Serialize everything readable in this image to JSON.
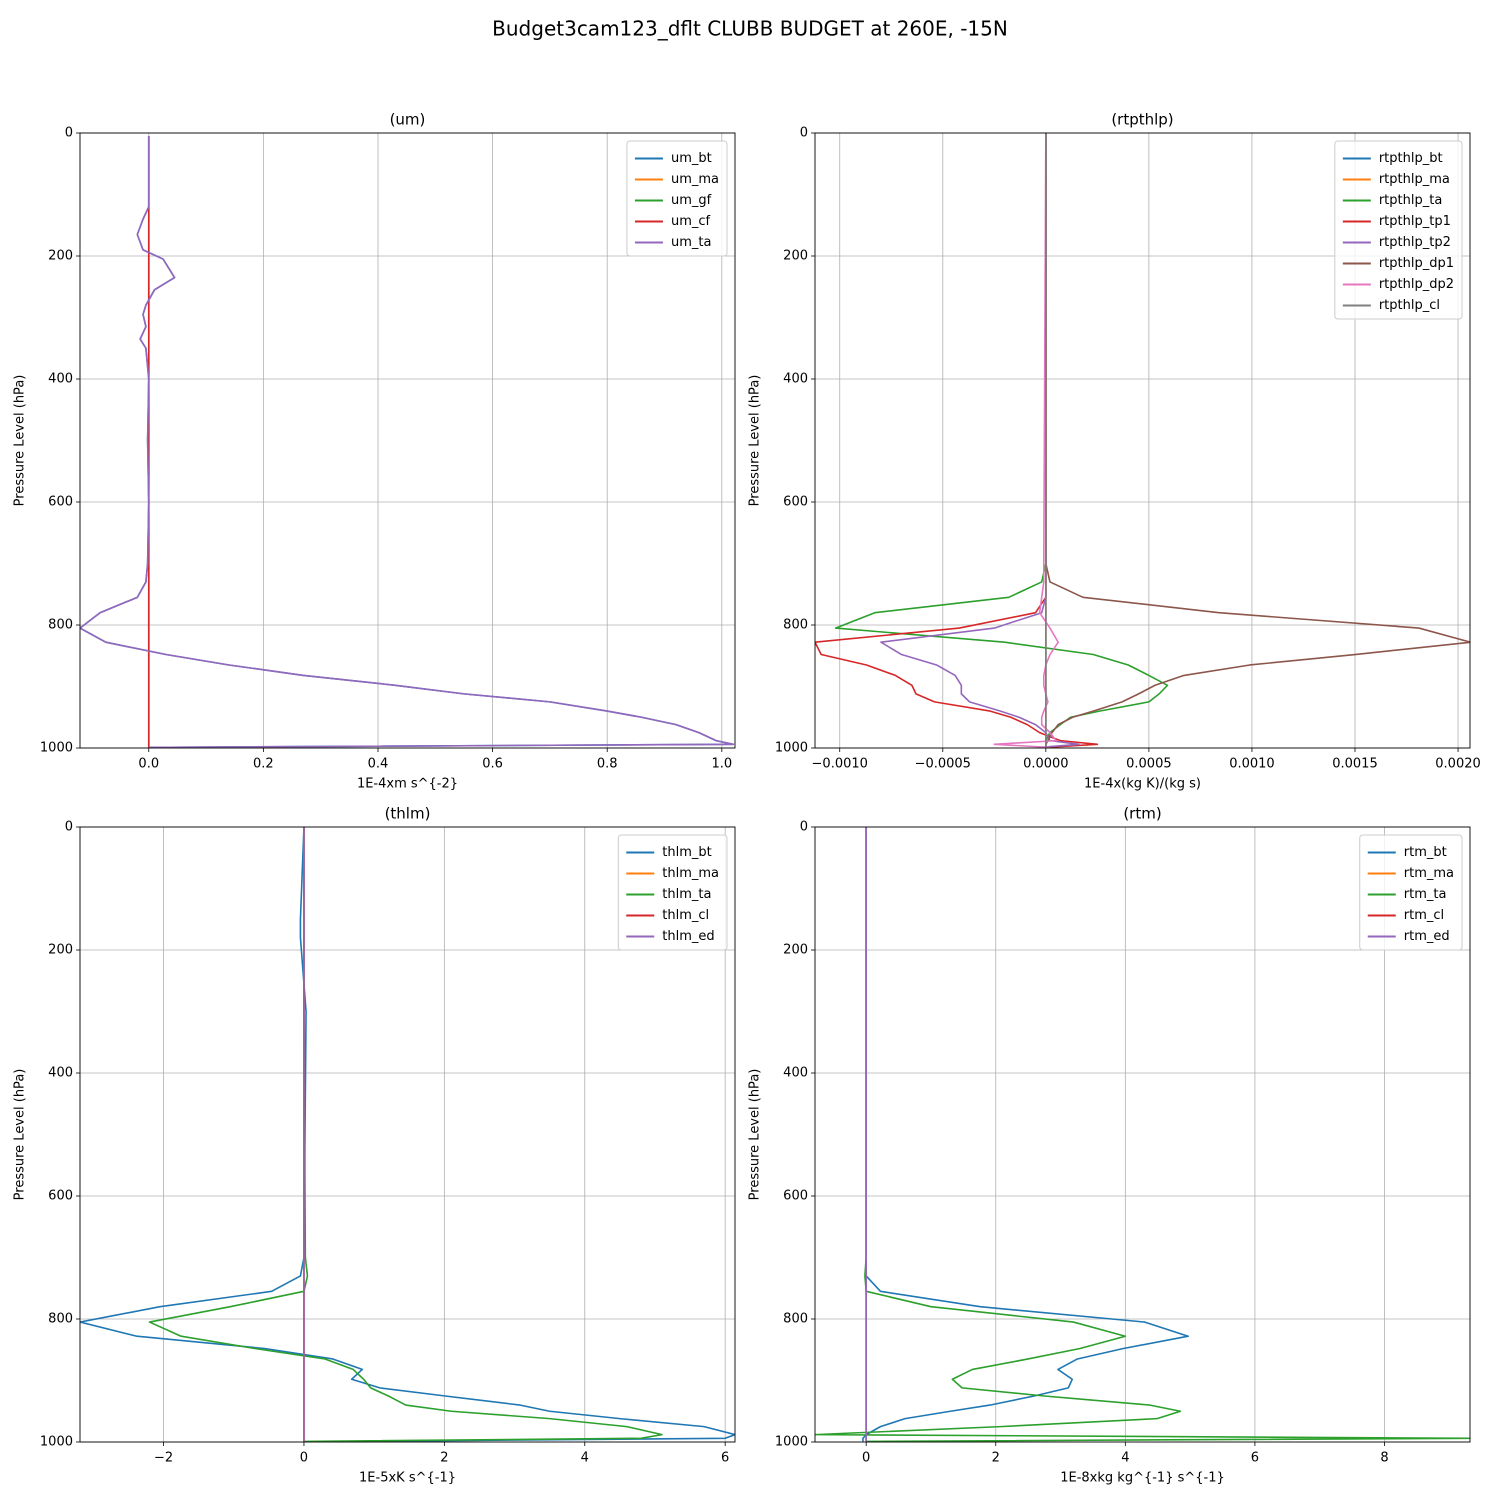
{
  "title": "Budget3cam123_dflt CLUBB BUDGET at 260E, -15N",
  "chart_data": [
    {
      "type": "line",
      "title": "(um)",
      "xlabel": "1E-4xm s^{-2}",
      "ylabel": "Pressure Level (hPa)",
      "xlim": [
        -0.12,
        1.023
      ],
      "xticks": [
        {
          "value": 0,
          "label": "0.0"
        },
        0.2,
        0.4,
        0.6,
        0.8,
        {
          "value": 1,
          "label": "1.0"
        }
      ],
      "ylim": [
        1000,
        0
      ],
      "yticks": [
        0,
        200,
        400,
        600,
        800,
        1000
      ],
      "grid": true,
      "legend": "upper right",
      "y": [
        5,
        20,
        120,
        140,
        165,
        190,
        205,
        235,
        255,
        280,
        295,
        315,
        335,
        350,
        400,
        500,
        600,
        700,
        730,
        755,
        780,
        805,
        828,
        848,
        865,
        882,
        898,
        912,
        925,
        940,
        950,
        962,
        975,
        988,
        994,
        999
      ],
      "series": [
        {
          "name": "um_bt",
          "color": "#1f77b4",
          "values": [
            0,
            0,
            0,
            -0.01,
            -0.02,
            -0.01,
            0.025,
            0.045,
            0.01,
            -0.005,
            -0.01,
            -0.005,
            -0.015,
            -0.005,
            0,
            -0.002,
            0,
            -0.002,
            -0.005,
            -0.02,
            -0.085,
            -0.12,
            -0.075,
            0.03,
            0.14,
            0.27,
            0.43,
            0.55,
            0.7,
            0.8,
            0.86,
            0.92,
            0.96,
            0.99,
            1.02,
            0
          ]
        },
        {
          "name": "um_ma",
          "color": "#ff7f0e",
          "values": [
            0,
            0,
            0,
            0,
            0,
            0,
            0,
            0,
            0,
            0,
            0,
            0,
            0,
            0,
            0,
            0,
            0,
            0,
            0,
            0,
            0,
            0,
            0,
            0,
            0,
            0,
            0,
            0,
            0,
            0,
            0,
            0,
            0,
            0,
            0,
            0
          ]
        },
        {
          "name": "um_gf",
          "color": "#2ca02c",
          "values": [
            0,
            0,
            0,
            0,
            0,
            0,
            0,
            0,
            0,
            0,
            0,
            0,
            0,
            0,
            0,
            0,
            0,
            0,
            0,
            0,
            0,
            0,
            0,
            0,
            0,
            0,
            0,
            0,
            0,
            0,
            0,
            0,
            0,
            0,
            0,
            0
          ]
        },
        {
          "name": "um_cf",
          "color": "#d62728",
          "values": [
            0,
            0,
            0,
            0,
            0,
            0,
            0,
            0,
            0,
            0,
            0,
            0,
            0,
            0,
            0,
            0,
            0,
            0,
            0,
            0,
            0,
            0,
            0,
            0,
            0,
            0,
            0,
            0,
            0,
            0,
            0,
            0,
            0,
            0,
            0,
            0
          ]
        },
        {
          "name": "um_ta",
          "color": "#9467bd",
          "values": [
            0,
            0,
            0,
            -0.01,
            -0.02,
            -0.01,
            0.025,
            0.045,
            0.01,
            -0.005,
            -0.01,
            -0.005,
            -0.015,
            -0.005,
            0,
            -0.002,
            0,
            -0.002,
            -0.005,
            -0.02,
            -0.085,
            -0.12,
            -0.075,
            0.03,
            0.14,
            0.27,
            0.43,
            0.55,
            0.7,
            0.8,
            0.86,
            0.92,
            0.96,
            0.99,
            1.02,
            0
          ]
        }
      ]
    },
    {
      "type": "line",
      "title": "(rtpthlp)",
      "xlabel": "1E-4x(kg K)/(kg s)",
      "ylabel": "Pressure Level (hPa)",
      "xlim": [
        -0.00112,
        0.002058
      ],
      "xticks": [
        {
          "value": -0.001,
          "label": "−0.0010"
        },
        {
          "value": -0.0005,
          "label": "−0.0005"
        },
        {
          "value": 0,
          "label": "0.0000"
        },
        {
          "value": 0.0005,
          "label": "0.0005"
        },
        {
          "value": 0.001,
          "label": "0.0010"
        },
        {
          "value": 0.0015,
          "label": "0.0015"
        },
        {
          "value": 0.002,
          "label": "0.0020"
        }
      ],
      "ylim": [
        1000,
        0
      ],
      "yticks": [
        0,
        200,
        400,
        600,
        800,
        1000
      ],
      "grid": true,
      "legend": "upper right",
      "y": [
        0,
        700,
        730,
        755,
        780,
        805,
        828,
        848,
        865,
        882,
        898,
        912,
        925,
        940,
        950,
        962,
        975,
        988,
        994,
        999
      ],
      "series": [
        {
          "name": "rtpthlp_bt",
          "color": "#1f77b4",
          "values": [
            0,
            0,
            0,
            0,
            0,
            0,
            0,
            0,
            0,
            0,
            0,
            0,
            0,
            0,
            0,
            0,
            0,
            0,
            0,
            0
          ]
        },
        {
          "name": "rtpthlp_ma",
          "color": "#ff7f0e",
          "values": [
            0,
            0,
            0,
            0,
            0,
            0,
            0,
            0,
            0,
            0,
            0,
            0,
            0,
            0,
            0,
            0,
            0,
            0,
            0,
            0
          ]
        },
        {
          "name": "rtpthlp_ta",
          "color": "#2ca02c",
          "values": [
            0,
            0,
            -2e-05,
            -0.00018,
            -0.00083,
            -0.00102,
            -0.0002,
            0.00023,
            0.0004,
            0.0005,
            0.00059,
            0.00055,
            0.0005,
            0.00026,
            0.00012,
            7e-05,
            2e-05,
            0,
            0,
            0
          ]
        },
        {
          "name": "rtpthlp_tp1",
          "color": "#d62728",
          "values": [
            0,
            0,
            0,
            0,
            -5e-05,
            -0.00042,
            -0.00112,
            -0.00109,
            -0.00087,
            -0.00073,
            -0.00065,
            -0.00063,
            -0.00054,
            -0.00027,
            -0.00017,
            -9e-05,
            -3e-05,
            7e-05,
            0.00025,
            0
          ]
        },
        {
          "name": "rtpthlp_tp2",
          "color": "#9467bd",
          "values": [
            0,
            0,
            0,
            0,
            -2e-05,
            -0.00025,
            -0.0008,
            -0.0007,
            -0.00053,
            -0.00044,
            -0.00041,
            -0.00041,
            -0.00037,
            -0.00022,
            -0.00013,
            -5e-05,
            0,
            2e-05,
            0.00016,
            -3e-05
          ]
        },
        {
          "name": "rtpthlp_dp1",
          "color": "#8c564b",
          "values": [
            0,
            0,
            2e-05,
            0.00018,
            0.00084,
            0.00181,
            0.00206,
            0.0015,
            0.00099,
            0.00067,
            0.00053,
            0.00045,
            0.00037,
            0.00023,
            0.00013,
            6e-05,
            3e-05,
            1e-05,
            0,
            0
          ]
        },
        {
          "name": "rtpthlp_dp2",
          "color": "#e377c2",
          "values": [
            0,
            -1e-05,
            -1e-05,
            -2e-05,
            -3e-05,
            2e-05,
            6e-05,
            2e-05,
            0,
            -1e-05,
            -1e-05,
            0,
            1e-05,
            -1e-05,
            -2e-05,
            -2e-05,
            2e-05,
            5e-05,
            -0.00025,
            2e-05
          ]
        },
        {
          "name": "rtpthlp_cl",
          "color": "#7f7f7f",
          "values": [
            0,
            0,
            0,
            0,
            0,
            0,
            0,
            0,
            0,
            0,
            0,
            0,
            0,
            0,
            0,
            0,
            0,
            0,
            0,
            0
          ]
        }
      ]
    },
    {
      "type": "line",
      "title": "(thlm)",
      "xlabel": "1E-5xK s^{-1}",
      "ylabel": "Pressure Level (hPa)",
      "xlim": [
        -3.19,
        6.14
      ],
      "xticks": [
        {
          "value": -2,
          "label": "−2"
        },
        0,
        2,
        4,
        6
      ],
      "ylim": [
        1000,
        0
      ],
      "yticks": [
        0,
        200,
        400,
        600,
        800,
        1000
      ],
      "grid": true,
      "legend": "upper right",
      "y": [
        0,
        150,
        180,
        300,
        700,
        730,
        755,
        780,
        805,
        828,
        848,
        865,
        882,
        898,
        912,
        925,
        940,
        950,
        962,
        975,
        988,
        994,
        999
      ],
      "series": [
        {
          "name": "thlm_bt",
          "color": "#1f77b4",
          "values": [
            0,
            -0.05,
            -0.05,
            0.03,
            0,
            -0.05,
            -0.46,
            -2.05,
            -3.19,
            -2.38,
            -0.56,
            0.41,
            0.83,
            0.68,
            1.08,
            2.0,
            3.08,
            3.5,
            4.5,
            5.7,
            6.14,
            6.0,
            0.75
          ]
        },
        {
          "name": "thlm_ma",
          "color": "#ff7f0e",
          "values": [
            0,
            0,
            0,
            0,
            0,
            0,
            0,
            0,
            0,
            0,
            0,
            0,
            0,
            0,
            0,
            0,
            0,
            0,
            0,
            0,
            0,
            0,
            0
          ]
        },
        {
          "name": "thlm_ta",
          "color": "#2ca02c",
          "values": [
            0,
            0,
            0,
            0,
            0.02,
            0.05,
            0,
            -1.05,
            -2.2,
            -1.75,
            -0.7,
            0.3,
            0.7,
            0.85,
            0.95,
            1.2,
            1.45,
            2.1,
            3.5,
            4.6,
            5.1,
            4.8,
            0
          ]
        },
        {
          "name": "thlm_cl",
          "color": "#d62728",
          "values": [
            0,
            0,
            0,
            0,
            0,
            0,
            0,
            0,
            0,
            0,
            0,
            0,
            0,
            0,
            0,
            0,
            0,
            0,
            0,
            0,
            0,
            0,
            0
          ]
        },
        {
          "name": "thlm_ed",
          "color": "#9467bd",
          "values": [
            0,
            0,
            0,
            0,
            0,
            0,
            0,
            0,
            0,
            0,
            0,
            0,
            0,
            0,
            0,
            0,
            0,
            0,
            0,
            0,
            0,
            0,
            0
          ]
        }
      ]
    },
    {
      "type": "line",
      "title": "(rtm)",
      "xlabel": "1E-8xkg kg^{-1} s^{-1}",
      "ylabel": "Pressure Level (hPa)",
      "xlim": [
        -0.79,
        9.32
      ],
      "xticks": [
        0,
        2,
        4,
        6,
        8
      ],
      "ylim": [
        1000,
        0
      ],
      "yticks": [
        0,
        200,
        400,
        600,
        800,
        1000
      ],
      "grid": true,
      "legend": "upper right",
      "y": [
        0,
        150,
        180,
        300,
        700,
        730,
        755,
        780,
        805,
        828,
        848,
        865,
        882,
        898,
        912,
        925,
        940,
        950,
        962,
        975,
        988,
        994,
        999
      ],
      "series": [
        {
          "name": "rtm_bt",
          "color": "#1f77b4",
          "values": [
            0,
            0,
            0,
            0,
            0,
            0,
            0.22,
            1.76,
            4.3,
            4.97,
            3.97,
            3.26,
            2.96,
            3.18,
            3.12,
            2.6,
            1.91,
            1.3,
            0.6,
            0.22,
            0,
            -0.05,
            -0.05
          ]
        },
        {
          "name": "rtm_ma",
          "color": "#ff7f0e",
          "values": [
            0,
            0,
            0,
            0,
            0,
            0,
            0,
            0,
            0,
            0,
            0,
            0,
            0,
            0,
            0,
            0,
            0,
            0,
            0,
            0,
            0,
            0,
            0
          ]
        },
        {
          "name": "rtm_ta",
          "color": "#2ca02c",
          "values": [
            0,
            0,
            0,
            0,
            0,
            -0.02,
            0,
            1.0,
            3.2,
            4.0,
            3.3,
            2.5,
            1.64,
            1.33,
            1.48,
            2.73,
            4.38,
            4.85,
            4.49,
            2.07,
            -0.79,
            9.32,
            0
          ]
        },
        {
          "name": "rtm_cl",
          "color": "#d62728",
          "values": [
            0,
            0,
            0,
            0,
            0,
            0,
            0,
            0,
            0,
            0,
            0,
            0,
            0,
            0,
            0,
            0,
            0,
            0,
            0,
            0,
            0,
            0,
            0
          ]
        },
        {
          "name": "rtm_ed",
          "color": "#9467bd",
          "values": [
            0,
            0,
            0,
            0,
            0,
            0,
            0,
            0,
            0,
            0,
            0,
            0,
            0,
            0,
            0,
            0,
            0,
            0,
            0,
            0,
            0,
            0,
            0
          ]
        }
      ]
    }
  ]
}
